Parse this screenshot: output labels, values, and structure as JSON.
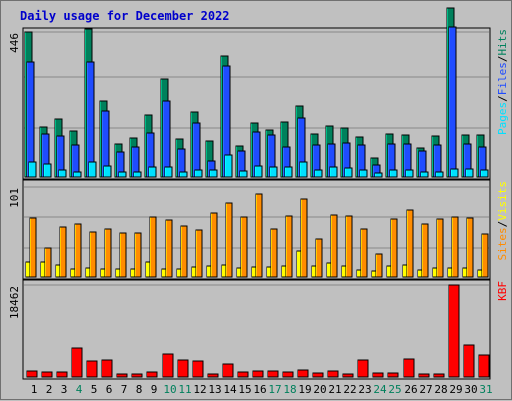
{
  "chart_data": {
    "type": "bar",
    "title": "Daily usage for December 2022",
    "categories": [
      "1",
      "2",
      "3",
      "4",
      "5",
      "6",
      "7",
      "8",
      "9",
      "10",
      "11",
      "12",
      "13",
      "14",
      "15",
      "16",
      "17",
      "18",
      "19",
      "20",
      "21",
      "22",
      "23",
      "24",
      "25",
      "26",
      "27",
      "28",
      "29",
      "30",
      "31"
    ],
    "weekend_days": [
      "4",
      "10",
      "11",
      "17",
      "18",
      "24",
      "25",
      "31"
    ],
    "panels": [
      {
        "ymax": 446,
        "ymax_label": "446",
        "right_label": [
          "Pages",
          "/",
          "Files",
          "/",
          "Hits"
        ],
        "series": [
          {
            "name": "Hits",
            "color": "#00805c",
            "values": [
              446,
              153,
              177,
              143,
              456,
              234,
              100,
              120,
              192,
              300,
              116,
              200,
              110,
              372,
              96,
              165,
              145,
              168,
              218,
              133,
              156,
              151,
              123,
              58,
              133,
              128,
              90,
              126,
              521,
              130,
              128
            ]
          },
          {
            "name": "Files",
            "color": "#1f4cff",
            "values": [
              353,
              133,
              126,
              98,
              353,
              203,
              77,
              92,
              135,
              233,
              86,
              167,
              49,
              342,
              80,
              138,
              130,
              91,
              182,
              98,
              102,
              104,
              98,
              37,
              102,
              102,
              80,
              98,
              460,
              100,
              93
            ]
          },
          {
            "name": "Pages",
            "color": "#00e0ff",
            "values": [
              46,
              39,
              22,
              16,
              46,
              34,
              16,
              16,
              32,
              32,
              16,
              23,
              21,
              67,
              19,
              33,
              30,
              32,
              46,
              23,
              32,
              27,
              21,
              12,
              21,
              23,
              15,
              16,
              26,
              25,
              23
            ]
          }
        ]
      },
      {
        "ymax": 101,
        "ymax_label": "101",
        "right_label": [
          "Sites",
          "/",
          "Visits"
        ],
        "series": [
          {
            "name": "Visits",
            "color": "#ffff00",
            "values": [
              17,
              17,
              14,
              9,
              10,
              9,
              9,
              9,
              17,
              9,
              9,
              11,
              12,
              14,
              10,
              11,
              11,
              12,
              29,
              12,
              16,
              12,
              8,
              7,
              12,
              13,
              8,
              10,
              10,
              10,
              8
            ]
          },
          {
            "name": "Sites",
            "color": "#ff8c00",
            "values": [
              66,
              33,
              56,
              60,
              50,
              54,
              49,
              49,
              67,
              64,
              57,
              53,
              72,
              83,
              67,
              93,
              54,
              69,
              88,
              43,
              70,
              68,
              54,
              26,
              65,
              75,
              59,
              65,
              67,
              66,
              48
            ]
          }
        ]
      },
      {
        "ymax": 18462,
        "ymax_label": "18462",
        "right_label": [
          "KB",
          "F"
        ],
        "series": [
          {
            "name": "KB F",
            "color": "#ff0000",
            "values": [
              1200,
              980,
              980,
              5900,
              3300,
              3500,
              530,
              530,
              980,
              4700,
              3500,
              3300,
              700,
              2600,
              1000,
              1200,
              1200,
              1000,
              1500,
              900,
              1300,
              530,
              3400,
              880,
              880,
              3600,
              530,
              530,
              18462,
              6500,
              4500
            ]
          }
        ]
      }
    ]
  },
  "colors": {
    "background": "#c0c0c0",
    "gridline": "#888888",
    "weekday_label": "#000000",
    "weekend_label": "#00805c",
    "title": "#0000cc"
  }
}
